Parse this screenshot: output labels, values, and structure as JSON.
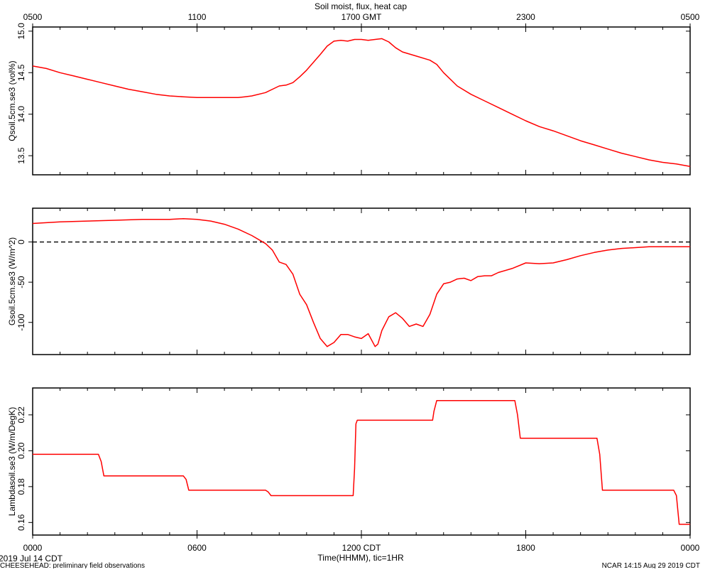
{
  "figure": {
    "title": "Soil moist, flux, heat cap",
    "top_axis_ticks": [
      "0500",
      "1100",
      "1700 GMT",
      "2300",
      "0500"
    ],
    "bottom_axis_ticks": [
      "0000",
      "0600",
      "1200 CDT",
      "1800",
      "0000"
    ],
    "bottom_axis_label": "Time(HHMM), tic=1HR",
    "date_label": "2019 Jul 14 CDT",
    "footer_left": "CHEESEHEAD: preliminary field observations",
    "footer_right": "NCAR 14:15 Aug 29 2019 CDT",
    "line_color": "#ff0000",
    "axis_color": "#000000"
  },
  "chart_data": [
    {
      "type": "line",
      "ylabel": "Qsoil.5cm.se3 (vol%)",
      "ylim": [
        13.27,
        15.05
      ],
      "yticks": [
        13.5,
        14.0,
        14.5,
        15.0
      ],
      "ytick_labels": [
        "13.5",
        "14.0",
        "14.5",
        "15.0"
      ],
      "xlim": [
        0,
        24
      ],
      "series": [
        {
          "x": [
            0,
            0.5,
            1,
            1.5,
            2,
            2.5,
            3,
            3.5,
            4,
            4.5,
            5,
            5.5,
            6,
            6.5,
            7,
            7.5,
            7.75,
            8,
            8.5,
            9,
            9.25,
            9.5,
            9.75,
            10,
            10.5,
            10.75,
            11,
            11.25,
            11.5,
            11.75,
            12,
            12.25,
            12.5,
            12.75,
            13,
            13.25,
            13.5,
            14,
            14.5,
            14.75,
            15,
            15.5,
            16,
            16.5,
            17,
            17.5,
            18,
            18.5,
            19,
            19.5,
            20,
            20.5,
            21,
            21.5,
            22,
            22.5,
            23,
            23.5,
            24
          ],
          "values": [
            14.58,
            14.55,
            14.5,
            14.46,
            14.42,
            14.38,
            14.34,
            14.3,
            14.27,
            14.24,
            14.22,
            14.21,
            14.2,
            14.2,
            14.2,
            14.2,
            14.21,
            14.22,
            14.26,
            14.34,
            14.35,
            14.38,
            14.45,
            14.53,
            14.72,
            14.82,
            14.88,
            14.89,
            14.88,
            14.9,
            14.9,
            14.89,
            14.9,
            14.91,
            14.87,
            14.8,
            14.75,
            14.7,
            14.65,
            14.6,
            14.5,
            14.34,
            14.24,
            14.16,
            14.08,
            14.0,
            13.92,
            13.85,
            13.8,
            13.74,
            13.68,
            13.63,
            13.58,
            13.53,
            13.49,
            13.45,
            13.42,
            13.4,
            13.37
          ]
        }
      ]
    },
    {
      "type": "line",
      "ylabel": "Gsoil.5cm.se3 (W/m^2)",
      "ylim": [
        -140,
        42
      ],
      "yticks": [
        -100,
        -50,
        0
      ],
      "ytick_labels": [
        "-100",
        "-50",
        "0"
      ],
      "xlim": [
        0,
        24
      ],
      "reference_line": 0,
      "series": [
        {
          "x": [
            0,
            1,
            2,
            3,
            4,
            5,
            5.5,
            6,
            6.5,
            7,
            7.5,
            8,
            8.5,
            8.75,
            9,
            9.25,
            9.5,
            9.75,
            10,
            10.25,
            10.5,
            10.75,
            11,
            11.25,
            11.5,
            11.75,
            12,
            12.25,
            12.5,
            12.6,
            12.75,
            13,
            13.25,
            13.5,
            13.75,
            14,
            14.25,
            14.5,
            14.75,
            15,
            15.25,
            15.5,
            15.75,
            16,
            16.25,
            16.5,
            16.75,
            17,
            17.5,
            18,
            18.5,
            19,
            19.5,
            20,
            20.5,
            21,
            21.5,
            22,
            22.5,
            23,
            23.5,
            24
          ],
          "values": [
            23,
            25,
            26,
            27,
            28,
            28,
            29,
            28,
            26,
            22,
            16,
            8,
            -2,
            -10,
            -25,
            -28,
            -40,
            -65,
            -78,
            -100,
            -120,
            -130,
            -125,
            -115,
            -115,
            -118,
            -120,
            -114,
            -130,
            -127,
            -110,
            -93,
            -88,
            -95,
            -105,
            -102,
            -105,
            -90,
            -65,
            -52,
            -50,
            -46,
            -45,
            -48,
            -43,
            -42,
            -42,
            -38,
            -33,
            -26,
            -27,
            -26,
            -22,
            -17,
            -13,
            -10,
            -8,
            -7,
            -6,
            -6,
            -6,
            -6
          ]
        }
      ]
    },
    {
      "type": "line",
      "ylabel": "Lambdasoil.se3 (W/m/DegK)",
      "ylim": [
        0.153,
        0.235
      ],
      "yticks": [
        0.16,
        0.18,
        0.2,
        0.22
      ],
      "ytick_labels": [
        "0.16",
        "0.18",
        "0.20",
        "0.22"
      ],
      "xlim": [
        0,
        24
      ],
      "series": [
        {
          "x": [
            0,
            2.4,
            2.5,
            2.6,
            5.5,
            5.6,
            5.7,
            8.5,
            8.6,
            8.7,
            11.7,
            11.75,
            11.8,
            11.85,
            14.6,
            14.65,
            14.75,
            17.6,
            17.7,
            17.8,
            20.6,
            20.7,
            20.8,
            23.4,
            23.5,
            23.6,
            24
          ],
          "values": [
            0.198,
            0.198,
            0.194,
            0.186,
            0.186,
            0.184,
            0.178,
            0.178,
            0.177,
            0.175,
            0.175,
            0.19,
            0.215,
            0.217,
            0.217,
            0.222,
            0.228,
            0.228,
            0.22,
            0.207,
            0.207,
            0.198,
            0.178,
            0.178,
            0.175,
            0.159,
            0.159
          ]
        }
      ]
    }
  ]
}
